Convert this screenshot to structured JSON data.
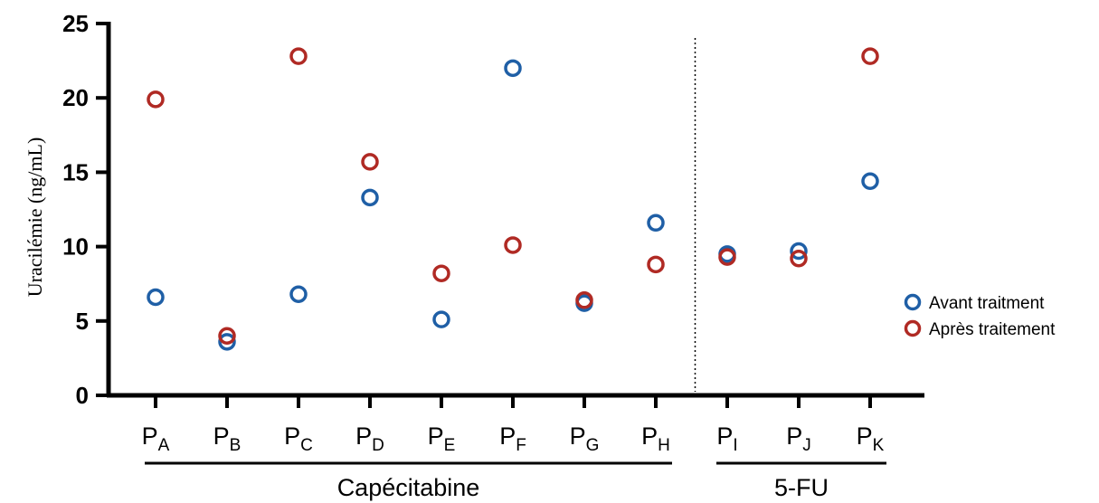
{
  "chart_data": {
    "type": "scatter",
    "ylabel": "Uracilémie (ng/mL)",
    "xlabel": "",
    "ylim": [
      0,
      25
    ],
    "yticks": [
      "0",
      "5",
      "10",
      "15",
      "20",
      "25"
    ],
    "categories": [
      {
        "main": "P",
        "sub": "A"
      },
      {
        "main": "P",
        "sub": "B"
      },
      {
        "main": "P",
        "sub": "C"
      },
      {
        "main": "P",
        "sub": "D"
      },
      {
        "main": "P",
        "sub": "E"
      },
      {
        "main": "P",
        "sub": "F"
      },
      {
        "main": "P",
        "sub": "G"
      },
      {
        "main": "P",
        "sub": "H"
      },
      {
        "main": "P",
        "sub": "I"
      },
      {
        "main": "P",
        "sub": "J"
      },
      {
        "main": "P",
        "sub": "K"
      }
    ],
    "series": [
      {
        "name": "Avant traitment",
        "color": "#1f5fa6",
        "values": [
          6.6,
          3.6,
          6.8,
          13.3,
          5.1,
          22.0,
          6.2,
          11.6,
          9.5,
          9.7,
          14.4
        ]
      },
      {
        "name": "Après traitement",
        "color": "#b02a24",
        "values": [
          19.9,
          4.0,
          22.8,
          15.7,
          8.2,
          10.1,
          6.4,
          8.8,
          9.3,
          9.2,
          22.8
        ]
      }
    ],
    "groups": [
      {
        "label": "Capécitabine",
        "from": 0,
        "to": 7
      },
      {
        "label": "5-FU",
        "from": 8,
        "to": 10
      }
    ],
    "separator_after_index": 7,
    "grid": false,
    "legend_position": "right"
  }
}
